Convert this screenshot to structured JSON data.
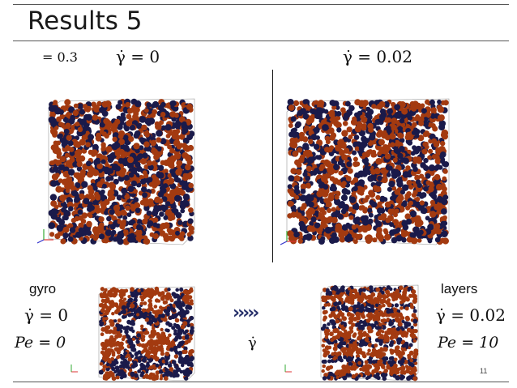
{
  "slide": {
    "title": "Results 5",
    "page_number": "11"
  },
  "top_labels": {
    "phi": "= 0.3",
    "left_rate": "γ̇ = 0",
    "right_rate": "γ̇ = 0.02"
  },
  "bottom_labels": {
    "left_name": "gyro",
    "left_rate": "γ̇ = 0",
    "left_pe": "Pe = 0",
    "right_name": "layers",
    "right_rate": "γ̇ = 0.02",
    "right_pe": "Pe = 10",
    "center_symbol": "γ̇",
    "arrow_glyphs": "›››››"
  },
  "colors": {
    "particle_orange": "#a33a10",
    "particle_blue": "#1a1a4a",
    "arrow": "#27306a"
  },
  "icons": {
    "axes": "axis-triad-icon",
    "arrow": "chevron-arrows-icon"
  }
}
